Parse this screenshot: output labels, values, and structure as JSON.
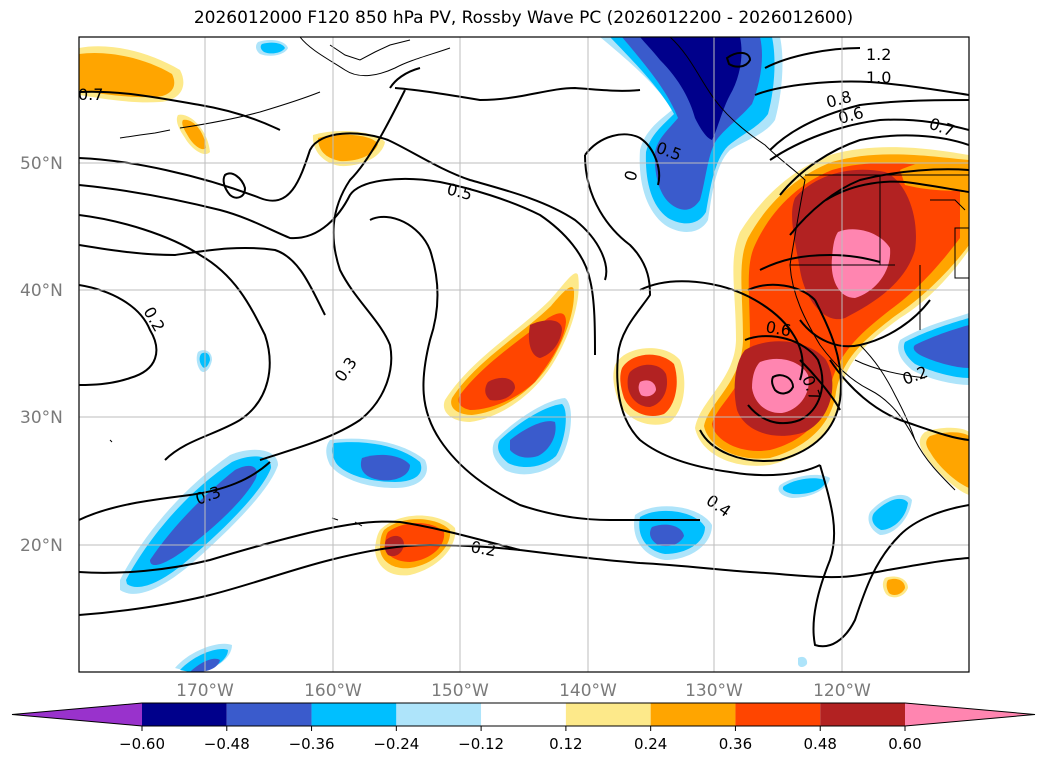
{
  "title": "2026012000 F120 850 hPa PV, Rossby Wave PC (2026012200 - 2026012600)",
  "longitude_labels": [
    "170°W",
    "160°W",
    "150°W",
    "140°W",
    "130°W",
    "120°W"
  ],
  "latitude_labels": [
    "50°N",
    "40°N",
    "30°N",
    "20°N"
  ],
  "contour_labels": [
    "0.7",
    "0.5",
    "0.5",
    "0.2",
    "0.3",
    "0.3",
    "0.2",
    "0.4",
    "0.6",
    "0.7",
    "0.8",
    "0.6",
    "1.0",
    "1.2",
    "0.7",
    "0.2",
    "0"
  ],
  "colorbar": {
    "tick_labels": [
      "−0.60",
      "−0.48",
      "−0.36",
      "−0.24",
      "−0.12",
      "0.12",
      "0.24",
      "0.36",
      "0.48",
      "0.60"
    ],
    "colors": [
      "#9932cc",
      "#00008b",
      "#3a5bcc",
      "#00bfff",
      "#aee4fa",
      "#ffffff",
      "#fde98a",
      "#ffa500",
      "#ff4500",
      "#b22222",
      "#ff85b0"
    ]
  },
  "shading_colors": {
    "neg_light": "#aee4fa",
    "neg_mid": "#00bfff",
    "neg_strong": "#3a5bcc",
    "neg_max": "#00008b",
    "pos_light": "#fde98a",
    "pos_mid": "#ffa500",
    "pos_strong": "#ff4500",
    "pos_high": "#b22222",
    "pos_max": "#ff85b0"
  }
}
